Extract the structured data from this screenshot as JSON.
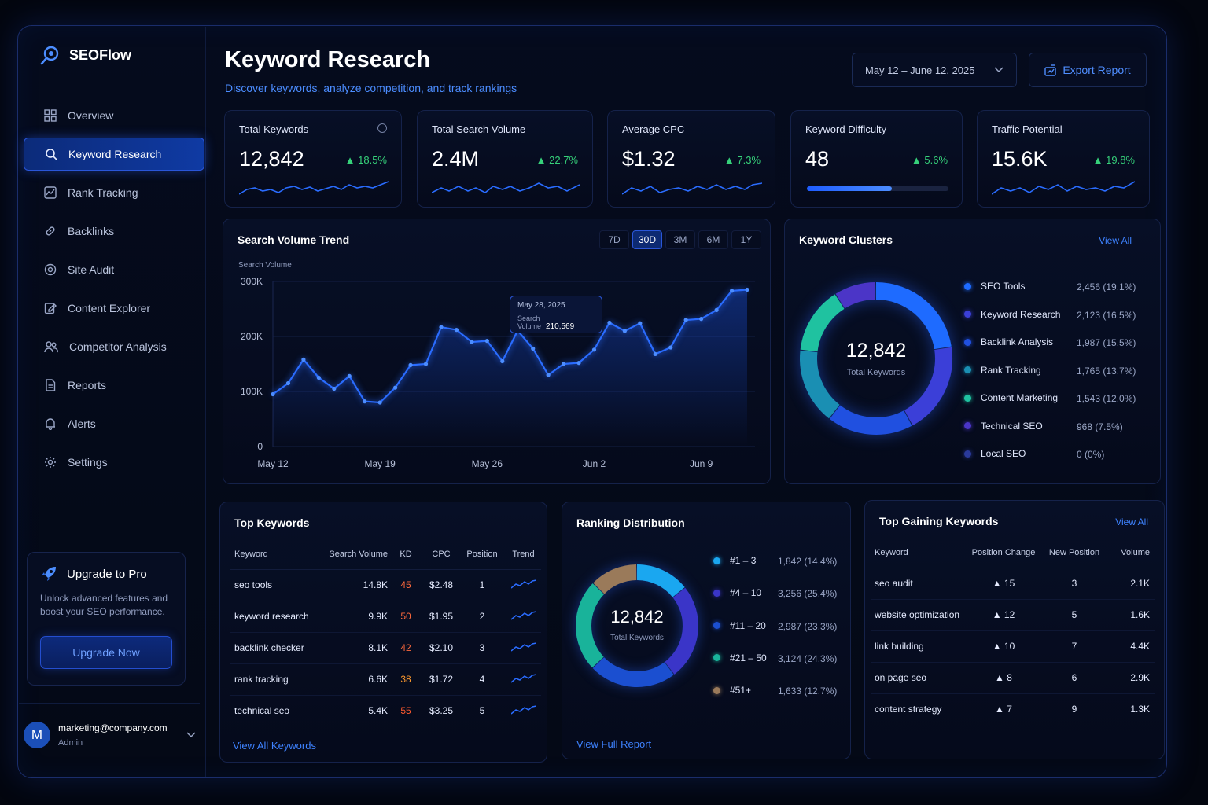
{
  "brand": {
    "name": "SEOFlow"
  },
  "sidebar": {
    "items": [
      {
        "label": "Overview",
        "icon": "grid-icon"
      },
      {
        "label": "Keyword Research",
        "icon": "search-icon",
        "active": true
      },
      {
        "label": "Rank Tracking",
        "icon": "chart-icon"
      },
      {
        "label": "Backlinks",
        "icon": "link-icon"
      },
      {
        "label": "Site Audit",
        "icon": "target-icon"
      },
      {
        "label": "Content Explorer",
        "icon": "edit-icon"
      },
      {
        "label": "Competitor Analysis",
        "icon": "users-icon"
      },
      {
        "label": "Reports",
        "icon": "document-icon"
      },
      {
        "label": "Alerts",
        "icon": "bell-icon"
      },
      {
        "label": "Settings",
        "icon": "gear-icon"
      }
    ],
    "upgrade": {
      "title": "Upgrade to Pro",
      "desc_line1": "Unlock advanced features and",
      "desc_line2": "boost your SEO performance.",
      "button": "Upgrade Now"
    },
    "user": {
      "initial": "M",
      "email": "marketing@company.com",
      "role": "Admin"
    }
  },
  "header": {
    "title": "Keyword Research",
    "subtitle": "Discover keywords, analyze competition, and track rankings",
    "date_range": "May 12 – June 12, 2025",
    "export": "Export Report"
  },
  "kpis": [
    {
      "label": "Total Keywords",
      "value": "12,842",
      "change": "▲ 18.5%"
    },
    {
      "label": "Total Search Volume",
      "value": "2.4M",
      "change": "▲ 22.7%"
    },
    {
      "label": "Average CPC",
      "value": "$1.32",
      "change": "▲ 7.3%"
    },
    {
      "label": "Keyword Difficulty",
      "value": "48",
      "change": "▲ 5.6%",
      "progress": 0.6
    },
    {
      "label": "Traffic Potential",
      "value": "15.6K",
      "change": "▲ 19.8%"
    }
  ],
  "trend": {
    "title": "Search Volume Trend",
    "ranges": [
      "7D",
      "30D",
      "3M",
      "6M",
      "1Y"
    ],
    "active_range": "30D",
    "tooltip": {
      "date": "May 28, 2025",
      "label": "Search Volume",
      "value": "210,569"
    }
  },
  "chart_data": {
    "type": "line",
    "ylabel": "Search Volume",
    "yticks": [
      "300K",
      "200K",
      "100K",
      "0"
    ],
    "ylim": [
      0,
      300000
    ],
    "xticks": [
      "May 12",
      "May 19",
      "May 26",
      "Jun 2",
      "Jun 9"
    ],
    "x": [
      "May 12",
      "May 13",
      "May 14",
      "May 15",
      "May 16",
      "May 17",
      "May 18",
      "May 19",
      "May 20",
      "May 21",
      "May 22",
      "May 23",
      "May 24",
      "May 25",
      "May 26",
      "May 27",
      "May 28",
      "May 29",
      "May 30",
      "May 31",
      "Jun 1",
      "Jun 2",
      "Jun 3",
      "Jun 4",
      "Jun 5",
      "Jun 6",
      "Jun 7",
      "Jun 8",
      "Jun 9",
      "Jun 10",
      "Jun 11",
      "Jun 12"
    ],
    "values": [
      95000,
      115000,
      158000,
      125000,
      105000,
      128000,
      82000,
      80000,
      107000,
      148000,
      150000,
      217000,
      212000,
      190000,
      192000,
      155000,
      210569,
      178000,
      130000,
      150000,
      152000,
      176000,
      225000,
      210000,
      224000,
      168000,
      180000,
      230000,
      232000,
      248000,
      283000,
      285000
    ],
    "grid": true
  },
  "clusters": {
    "title": "Keyword Clusters",
    "view_all": "View All",
    "center_value": "12,842",
    "center_label": "Total Keywords",
    "items": [
      {
        "name": "SEO Tools",
        "value": "2,456 (19.1%)",
        "share": 19.1,
        "color": "#1e6bff"
      },
      {
        "name": "Keyword Research",
        "value": "2,123 (16.5%)",
        "share": 16.5,
        "color": "#3b3fd8"
      },
      {
        "name": "Backlink Analysis",
        "value": "1,987 (15.5%)",
        "share": 15.5,
        "color": "#2050e0"
      },
      {
        "name": "Rank Tracking",
        "value": "1,765 (13.7%)",
        "share": 13.7,
        "color": "#1a8fb3"
      },
      {
        "name": "Content Marketing",
        "value": "1,543 (12.0%)",
        "share": 12.0,
        "color": "#1fc2a0"
      },
      {
        "name": "Technical SEO",
        "value": "968 (7.5%)",
        "share": 7.5,
        "color": "#4b35c7"
      },
      {
        "name": "Local SEO",
        "value": "0 (0%)",
        "share": 0,
        "color": "#2a3a9c"
      }
    ]
  },
  "top_keywords": {
    "title": "Top Keywords",
    "headers": [
      "Keyword",
      "Search Volume",
      "KD",
      "CPC",
      "Position",
      "Trend"
    ],
    "rows": [
      {
        "keyword": "seo tools",
        "volume": "14.8K",
        "kd": "45",
        "kd_color": "#ff6a3d",
        "cpc": "$2.48",
        "position": "1"
      },
      {
        "keyword": "keyword research",
        "volume": "9.9K",
        "kd": "50",
        "kd_color": "#ff6a3d",
        "cpc": "$1.95",
        "position": "2"
      },
      {
        "keyword": "backlink checker",
        "volume": "8.1K",
        "kd": "42",
        "kd_color": "#ff6a3d",
        "cpc": "$2.10",
        "position": "3"
      },
      {
        "keyword": "rank tracking",
        "volume": "6.6K",
        "kd": "38",
        "kd_color": "#ff9a2e",
        "cpc": "$1.72",
        "position": "4"
      },
      {
        "keyword": "technical seo",
        "volume": "5.4K",
        "kd": "55",
        "kd_color": "#ff5a2e",
        "cpc": "$3.25",
        "position": "5"
      }
    ],
    "view_all": "View All Keywords"
  },
  "ranking": {
    "title": "Ranking Distribution",
    "center_value": "12,842",
    "center_label": "Total Keywords",
    "items": [
      {
        "name": "#1 – 3",
        "value": "1,842 (14.4%)",
        "share": 14.4,
        "color": "#1aa7f0"
      },
      {
        "name": "#4 – 10",
        "value": "3,256 (25.4%)",
        "share": 25.4,
        "color": "#3a35c8"
      },
      {
        "name": "#11 – 20",
        "value": "2,987 (23.3%)",
        "share": 23.3,
        "color": "#1b4fd0"
      },
      {
        "name": "#21 – 50",
        "value": "3,124 (24.3%)",
        "share": 24.3,
        "color": "#19b39a"
      },
      {
        "name": "#51+",
        "value": "1,633 (12.7%)",
        "share": 12.7,
        "color": "#9a7a5a"
      }
    ],
    "view_report": "View Full Report"
  },
  "gaining": {
    "title": "Top Gaining Keywords",
    "view_all": "View All",
    "headers": [
      "Keyword",
      "Position Change",
      "New Position",
      "Volume"
    ],
    "rows": [
      {
        "keyword": "seo audit",
        "change": "▲ 15",
        "position": "3",
        "volume": "2.1K"
      },
      {
        "keyword": "website optimization",
        "change": "▲ 12",
        "position": "5",
        "volume": "1.6K"
      },
      {
        "keyword": "link building",
        "change": "▲ 10",
        "position": "7",
        "volume": "4.4K"
      },
      {
        "keyword": "on page seo",
        "change": "▲ 8",
        "position": "6",
        "volume": "2.9K"
      },
      {
        "keyword": "content strategy",
        "change": "▲ 7",
        "position": "9",
        "volume": "1.3K"
      }
    ]
  }
}
